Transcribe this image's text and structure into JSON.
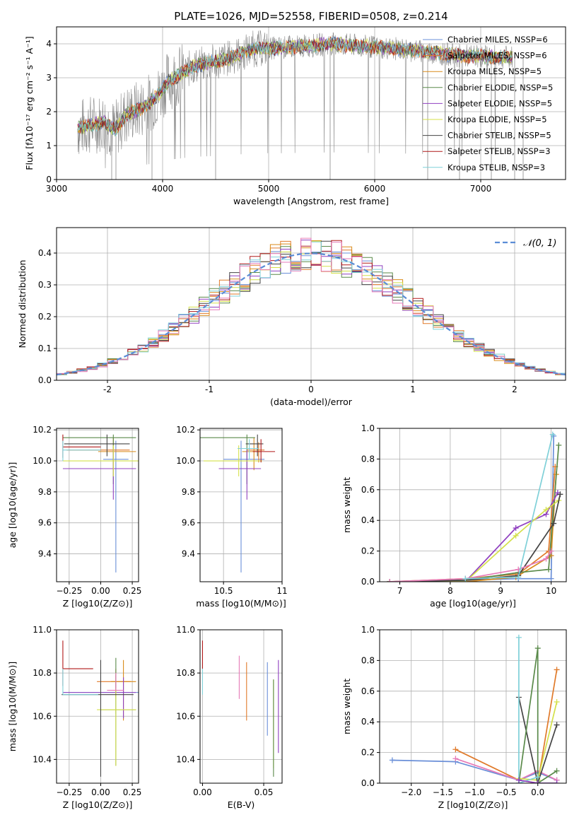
{
  "colors": {
    "chabrier_miles": "#6a8fd8",
    "salpeter_miles": "#e07a2a",
    "kroupa_miles": "#d98a1a",
    "chabrier_elodie": "#5a8a4a",
    "salpeter_elodie": "#9040c0",
    "kroupa_elodie": "#d4e04a",
    "chabrier_stelib": "#444444",
    "salpeter_stelib": "#b01818",
    "kroupa_stelib": "#7fd0d8",
    "pink": "#e67ab8",
    "normal": "#5b8dd6"
  },
  "chart_data": [
    {
      "id": "spectrum",
      "type": "line",
      "title": "PLATE=1026, MJD=52558, FIBERID=0508, z=0.214",
      "xlabel": "wavelength [Angstrom, rest frame]",
      "ylabel": "Flux [f$_\\lambda$10$^{-17}$ erg cm$^{-2}$ s$^{-1}$ A$^{-1}$]",
      "xlim": [
        3000,
        7800
      ],
      "ylim": [
        0,
        4.5
      ],
      "xticks": [
        3000,
        4000,
        5000,
        6000,
        7000
      ],
      "yticks": [
        0,
        1,
        2,
        3,
        4
      ],
      "legend_position": "right",
      "legend": [
        "Chabrier MILES, N$_{SSP}$=6",
        "Salpeter MILES, N$_{SSP}$=6",
        "Kroupa MILES, N$_{SSP}$=5",
        "Chabrier ELODIE, N$_{SSP}$=5",
        "Salpeter ELODIE, N$_{SSP}$=5",
        "Kroupa ELODIE, N$_{SSP}$=5",
        "Chabrier STELIB, N$_{SSP}$=5",
        "Salpeter STELIB, N$_{SSP}$=3",
        "Kroupa STELIB, N$_{SSP}$=3"
      ],
      "trend": {
        "x": [
          3200,
          3300,
          3450,
          3550,
          3650,
          3800,
          3950,
          4050,
          4300,
          4600,
          4850,
          5200,
          5600,
          6000,
          6400,
          6800,
          7300
        ],
        "y": [
          1.5,
          1.6,
          1.7,
          1.45,
          1.9,
          2.1,
          2.45,
          2.9,
          3.35,
          3.55,
          3.85,
          3.9,
          4.0,
          3.9,
          3.8,
          3.65,
          3.6
        ]
      }
    },
    {
      "id": "residuals",
      "type": "line",
      "xlabel": "(data-model)/error",
      "ylabel": "Normed distribution",
      "xlim": [
        -2.5,
        2.5
      ],
      "ylim": [
        0,
        0.48
      ],
      "xticks": [
        -2,
        -1,
        0,
        1,
        2
      ],
      "yticks": [
        0.0,
        0.1,
        0.2,
        0.3,
        0.4
      ],
      "legend_position": "top-right",
      "legend": [
        "𝒩(0, 1)"
      ],
      "normal_curve": {
        "mean": 0,
        "sigma": 1
      }
    },
    {
      "id": "age_vs_Z",
      "type": "scatter",
      "xlabel": "Z [log$_{10}$(Z/Z$_\\odot$)]",
      "ylabel": "age  [log$_{10}$(age/yr)]",
      "xlim": [
        -0.35,
        0.3
      ],
      "ylim": [
        9.22,
        10.21
      ],
      "xticks": [
        -0.25,
        0.0,
        0.25
      ],
      "xticklabels": [
        "−0.25",
        "0.00",
        "0.25"
      ],
      "yticks": [
        9.4,
        9.6,
        9.8,
        10.0,
        10.2
      ],
      "points": [
        {
          "x": 0.12,
          "y": 10.01,
          "xerr": [
            0.1,
            0.1
          ],
          "yerr": [
            0.73,
            0.12
          ],
          "c": "chabrier_miles"
        },
        {
          "x": 0.11,
          "y": 10.07,
          "xerr": [
            0.38,
            0.12
          ],
          "yerr": [
            0.0,
            0.0
          ],
          "c": "salpeter_miles"
        },
        {
          "x": 0.1,
          "y": 10.06,
          "xerr": [
            0.12,
            0.18
          ],
          "yerr": [
            0.12,
            0.09
          ],
          "c": "kroupa_miles"
        },
        {
          "x": 0.1,
          "y": 10.15,
          "xerr": [
            0.4,
            0.18
          ],
          "yerr": [
            0.3,
            0.02
          ],
          "c": "chabrier_elodie"
        },
        {
          "x": 0.1,
          "y": 9.95,
          "xerr": [
            0.4,
            0.18
          ],
          "yerr": [
            0.2,
            0.12
          ],
          "c": "salpeter_elodie"
        },
        {
          "x": 0.1,
          "y": 10.0,
          "xerr": [
            0.4,
            0.2
          ],
          "yerr": [
            0.1,
            0.1
          ],
          "c": "kroupa_elodie"
        },
        {
          "x": 0.05,
          "y": 10.11,
          "xerr": [
            0.34,
            0.18
          ],
          "yerr": [
            0.08,
            0.06
          ],
          "c": "chabrier_stelib"
        },
        {
          "x": -0.3,
          "y": 10.09,
          "xerr": [
            0.0,
            0.3
          ],
          "yerr": [
            0.07,
            0.08
          ],
          "c": "salpeter_stelib"
        },
        {
          "x": -0.3,
          "y": 10.07,
          "xerr": [
            0.0,
            0.3
          ],
          "yerr": [
            0.07,
            0.06
          ],
          "c": "kroupa_stelib"
        }
      ]
    },
    {
      "id": "age_vs_mass",
      "type": "scatter",
      "xlabel": "mass [log$_{10}$(M/M$_\\odot$)]",
      "xlim": [
        10.3,
        11.0
      ],
      "ylim": [
        9.22,
        10.21
      ],
      "xticks": [
        10.5,
        11.0
      ],
      "yticks": [
        9.4,
        9.6,
        9.8,
        10.0,
        10.2
      ],
      "points": [
        {
          "x": 10.65,
          "y": 10.01,
          "xerr": [
            0.15,
            0.2
          ],
          "yerr": [
            0.73,
            0.12
          ],
          "c": "chabrier_miles"
        },
        {
          "x": 10.8,
          "y": 10.07,
          "xerr": [
            0.1,
            0.05
          ],
          "yerr": [
            0.08,
            0.05
          ],
          "c": "salpeter_miles"
        },
        {
          "x": 10.76,
          "y": 10.06,
          "xerr": [
            0.1,
            0.06
          ],
          "yerr": [
            0.12,
            0.09
          ],
          "c": "kroupa_miles"
        },
        {
          "x": 10.7,
          "y": 10.15,
          "xerr": [
            0.4,
            0.07
          ],
          "yerr": [
            0.3,
            0.02
          ],
          "c": "chabrier_elodie"
        },
        {
          "x": 10.7,
          "y": 9.95,
          "xerr": [
            0.24,
            0.12
          ],
          "yerr": [
            0.2,
            0.12
          ],
          "c": "salpeter_elodie"
        },
        {
          "x": 10.63,
          "y": 10.0,
          "xerr": [
            0.3,
            0.2
          ],
          "yerr": [
            0.1,
            0.1
          ],
          "c": "kroupa_elodie"
        },
        {
          "x": 10.79,
          "y": 10.11,
          "xerr": [
            0.1,
            0.05
          ],
          "yerr": [
            0.08,
            0.06
          ],
          "c": "chabrier_stelib"
        },
        {
          "x": 10.82,
          "y": 10.06,
          "xerr": [
            0.07,
            0.12
          ],
          "yerr": [
            0.07,
            0.08
          ],
          "c": "salpeter_stelib"
        },
        {
          "x": 10.72,
          "y": 10.08,
          "xerr": [
            0.1,
            0.08
          ],
          "yerr": [
            0.07,
            0.06
          ],
          "c": "kroupa_stelib"
        }
      ]
    },
    {
      "id": "weight_vs_age",
      "type": "line",
      "xlabel": "age  [log$_{10}$(age/yr)]",
      "ylabel": "mass weight",
      "xlim": [
        6.6,
        10.3
      ],
      "ylim": [
        0,
        1.0
      ],
      "xticks": [
        7,
        8,
        9,
        10
      ],
      "yticks": [
        0.0,
        0.2,
        0.4,
        0.6,
        0.8,
        1.0
      ],
      "series": [
        {
          "c": "chabrier_miles",
          "x": [
            6.8,
            8.3,
            9.35,
            10.0,
            10.05
          ],
          "y": [
            0.0,
            0.01,
            0.02,
            0.02,
            0.95
          ]
        },
        {
          "c": "salpeter_miles",
          "x": [
            6.8,
            8.3,
            9.35,
            9.95,
            10.08
          ],
          "y": [
            0.0,
            0.02,
            0.05,
            0.2,
            0.75
          ]
        },
        {
          "c": "kroupa_miles",
          "x": [
            6.8,
            8.3,
            9.3,
            10.0,
            10.1
          ],
          "y": [
            0.0,
            0.0,
            0.03,
            0.17,
            0.7
          ]
        },
        {
          "c": "chabrier_elodie",
          "x": [
            6.8,
            8.3,
            9.35,
            9.95,
            10.15
          ],
          "y": [
            0.0,
            0.01,
            0.06,
            0.08,
            0.89
          ]
        },
        {
          "c": "salpeter_elodie",
          "x": [
            6.8,
            8.3,
            9.3,
            9.9,
            10.13
          ],
          "y": [
            0.0,
            0.0,
            0.35,
            0.44,
            0.58
          ]
        },
        {
          "c": "kroupa_elodie",
          "x": [
            6.8,
            8.3,
            9.3,
            9.9,
            10.15
          ],
          "y": [
            0.0,
            0.0,
            0.3,
            0.47,
            0.53
          ]
        },
        {
          "c": "chabrier_stelib",
          "x": [
            6.8,
            8.3,
            9.35,
            10.05,
            10.18
          ],
          "y": [
            0.0,
            0.01,
            0.04,
            0.38,
            0.57
          ]
        },
        {
          "c": "pink",
          "x": [
            6.8,
            8.3,
            9.35,
            9.9,
            10.0
          ],
          "y": [
            0.0,
            0.02,
            0.08,
            0.15,
            0.2
          ]
        },
        {
          "c": "kroupa_stelib",
          "x": [
            8.3,
            9.35,
            10.03
          ],
          "y": [
            0.02,
            0.03,
            0.96
          ]
        }
      ]
    },
    {
      "id": "mass_vs_Z",
      "type": "scatter",
      "xlabel": "Z [log$_{10}$(Z/Z$_\\odot$)]",
      "ylabel": "mass [log$_{10}$(M/M$_\\odot$)]",
      "xlim": [
        -0.35,
        0.3
      ],
      "ylim": [
        10.29,
        11.0
      ],
      "xticks": [
        -0.25,
        0.0,
        0.25
      ],
      "xticklabels": [
        "−0.25",
        "0.00",
        "0.25"
      ],
      "yticks": [
        10.4,
        10.6,
        10.8,
        11.0
      ],
      "points": [
        {
          "x": 0.12,
          "y": 10.71,
          "xerr": [
            0.42,
            0.18
          ],
          "yerr": [
            0.1,
            0.08
          ],
          "c": "chabrier_miles"
        },
        {
          "x": 0.12,
          "y": 10.76,
          "xerr": [
            0.15,
            0.12
          ],
          "yerr": [
            0.07,
            0.06
          ],
          "c": "salpeter_miles"
        },
        {
          "x": 0.18,
          "y": 10.76,
          "xerr": [
            0.1,
            0.1
          ],
          "yerr": [
            0.18,
            0.1
          ],
          "c": "kroupa_miles"
        },
        {
          "x": 0.12,
          "y": 10.63,
          "xerr": [
            0.12,
            0.16
          ],
          "yerr": [
            0.26,
            0.24
          ],
          "c": "chabrier_elodie"
        },
        {
          "x": 0.18,
          "y": 10.71,
          "xerr": [
            0.48,
            0.1
          ],
          "yerr": [
            0.12,
            0.07
          ],
          "c": "salpeter_elodie"
        },
        {
          "x": 0.12,
          "y": 10.63,
          "xerr": [
            0.15,
            0.16
          ],
          "yerr": [
            0.26,
            0.1
          ],
          "c": "kroupa_elodie"
        },
        {
          "x": 0.0,
          "y": 10.7,
          "xerr": [
            0.31,
            0.26
          ],
          "yerr": [
            0.38,
            0.16
          ],
          "c": "chabrier_stelib"
        },
        {
          "x": -0.3,
          "y": 10.82,
          "xerr": [
            0.0,
            0.24
          ],
          "yerr": [
            0.08,
            0.13
          ],
          "c": "salpeter_stelib"
        },
        {
          "x": -0.3,
          "y": 10.7,
          "xerr": [
            0.0,
            0.28
          ],
          "yerr": [
            0.0,
            0.12
          ],
          "c": "kroupa_stelib"
        },
        {
          "x": 0.12,
          "y": 10.72,
          "xerr": [
            0.07,
            0.06
          ],
          "yerr": [
            0.0,
            0.08
          ],
          "c": "pink"
        }
      ]
    },
    {
      "id": "mass_vs_ebv",
      "type": "scatter",
      "xlabel": "E(B-V)",
      "xlim": [
        -0.002,
        0.065
      ],
      "ylim": [
        10.29,
        11.0
      ],
      "xticks": [
        0.0,
        0.05
      ],
      "xticklabels": [
        "0.00",
        "0.05"
      ],
      "yticks": [
        10.4,
        10.6,
        10.8,
        11.0
      ],
      "points": [
        {
          "x": 0.0,
          "y": 10.78,
          "xerr": [
            0.0,
            0.0
          ],
          "yerr": [
            0.08,
            0.07
          ],
          "c": "kroupa_stelib"
        },
        {
          "x": 0.0,
          "y": 10.86,
          "xerr": [
            0.0,
            0.0
          ],
          "yerr": [
            0.04,
            0.09
          ],
          "c": "salpeter_stelib"
        },
        {
          "x": 0.03,
          "y": 10.78,
          "xerr": [
            0.0,
            0.0
          ],
          "yerr": [
            0.1,
            0.1
          ],
          "c": "pink"
        },
        {
          "x": 0.036,
          "y": 10.72,
          "xerr": [
            0.0,
            0.0
          ],
          "yerr": [
            0.14,
            0.13
          ],
          "c": "salpeter_miles"
        },
        {
          "x": 0.053,
          "y": 10.68,
          "xerr": [
            0.0,
            0.0
          ],
          "yerr": [
            0.17,
            0.17
          ],
          "c": "chabrier_miles"
        },
        {
          "x": 0.058,
          "y": 10.57,
          "xerr": [
            0.0,
            0.0
          ],
          "yerr": [
            0.21,
            0.2
          ],
          "c": "kroupa_elodie"
        },
        {
          "x": 0.058,
          "y": 10.55,
          "xerr": [
            0.0,
            0.0
          ],
          "yerr": [
            0.23,
            0.22
          ],
          "c": "chabrier_elodie"
        },
        {
          "x": 0.062,
          "y": 10.65,
          "xerr": [
            0.0,
            0.0
          ],
          "yerr": [
            0.22,
            0.21
          ],
          "c": "salpeter_elodie"
        }
      ]
    },
    {
      "id": "weight_vs_Z",
      "type": "line",
      "xlabel": "Z [log$_{10}$(Z/Z$_\\odot$)]",
      "ylabel": "mass weight",
      "xlim": [
        -2.5,
        0.45
      ],
      "ylim": [
        0,
        1.0
      ],
      "xticks": [
        -2.0,
        -1.5,
        -1.0,
        -0.5,
        0.0
      ],
      "xticklabels": [
        "−2.0",
        "−1.5",
        "−1.0",
        "−0.5",
        "0.0"
      ],
      "yticks": [
        0.0,
        0.2,
        0.4,
        0.6,
        0.8,
        1.0
      ],
      "series": [
        {
          "c": "chabrier_miles",
          "x": [
            -2.3,
            -1.3,
            -0.3,
            0.0,
            0.3
          ],
          "y": [
            0.15,
            0.14,
            0.02,
            0.07,
            0.02
          ]
        },
        {
          "c": "salpeter_miles",
          "x": [
            -1.3,
            -0.3,
            0.0,
            0.3
          ],
          "y": [
            0.22,
            0.02,
            0.0,
            0.74
          ]
        },
        {
          "c": "pink",
          "x": [
            -1.3,
            -0.3,
            0.0,
            0.3
          ],
          "y": [
            0.16,
            0.02,
            0.08,
            0.02
          ]
        },
        {
          "c": "kroupa_elodie",
          "x": [
            -0.3,
            0.0,
            0.3
          ],
          "y": [
            0.03,
            0.02,
            0.53
          ]
        },
        {
          "c": "chabrier_stelib",
          "x": [
            -0.3,
            0.0,
            0.3
          ],
          "y": [
            0.56,
            0.0,
            0.38
          ]
        },
        {
          "c": "chabrier_elodie",
          "x": [
            -0.3,
            0.0,
            0.0,
            0.3
          ],
          "y": [
            0.0,
            0.88,
            0.0,
            0.08
          ]
        },
        {
          "c": "kroupa_stelib",
          "x": [
            -0.3,
            -0.3,
            0.0
          ],
          "y": [
            0.95,
            0.0,
            0.04
          ]
        },
        {
          "c": "salpeter_elodie",
          "x": [
            -0.3,
            0.0,
            0.3
          ],
          "y": [
            0.02,
            0.0,
            0.0
          ]
        }
      ]
    }
  ]
}
